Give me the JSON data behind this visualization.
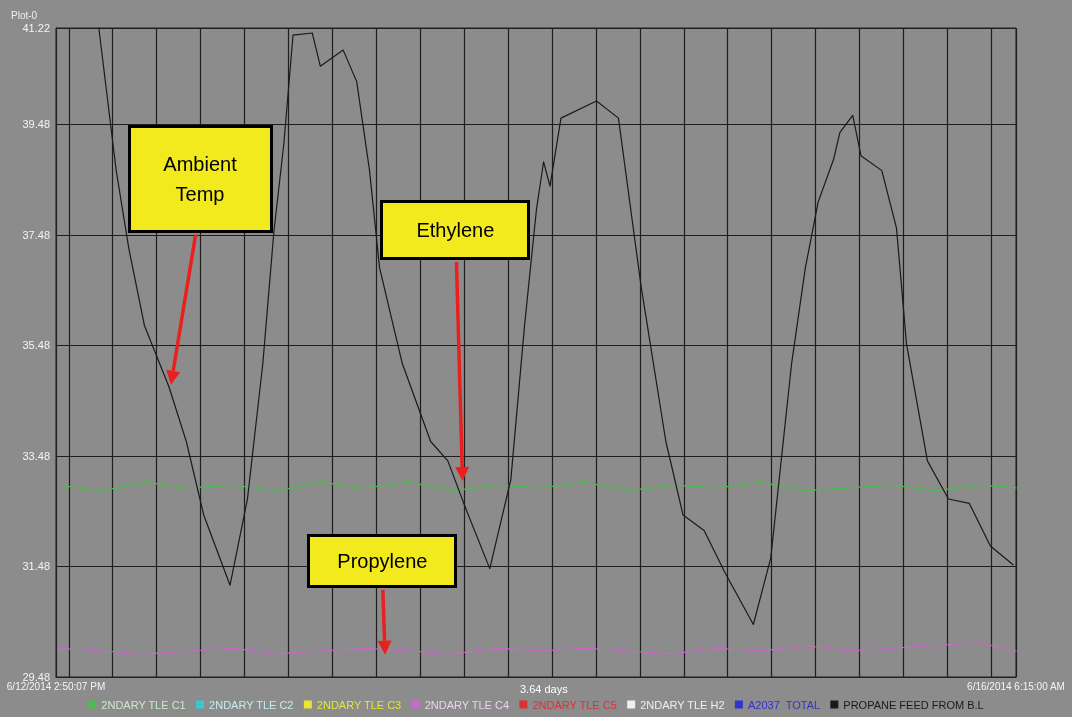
{
  "chart_data": {
    "type": "line",
    "title": "Plot-0",
    "xlim": [
      "2014-06-12T14:50",
      "2014-06-16T06:15"
    ],
    "xticks": [
      {
        "value": "2014-06-12T14:50",
        "label": "6/12/2014 2:50:07 PM"
      },
      {
        "value": "2014-06-12T16:00",
        "label": null
      },
      {
        "value": "2014-06-12T20:00",
        "label": null
      },
      {
        "value": "2014-06-13T00:00",
        "label": null
      },
      {
        "value": "2014-06-13T04:00",
        "label": null
      },
      {
        "value": "2014-06-13T08:00",
        "label": null
      },
      {
        "value": "2014-06-13T12:00",
        "label": null
      },
      {
        "value": "2014-06-13T16:00",
        "label": null
      },
      {
        "value": "2014-06-13T20:00",
        "label": null
      },
      {
        "value": "2014-06-14T00:00",
        "label": null
      },
      {
        "value": "2014-06-14T04:00",
        "label": null
      },
      {
        "value": "2014-06-14T08:00",
        "label": null
      },
      {
        "value": "2014-06-14T12:00",
        "label": null
      },
      {
        "value": "2014-06-14T16:00",
        "label": null
      },
      {
        "value": "2014-06-14T20:00",
        "label": null
      },
      {
        "value": "2014-06-15T00:00",
        "label": null
      },
      {
        "value": "2014-06-15T04:00",
        "label": null
      },
      {
        "value": "2014-06-15T08:00",
        "label": null
      },
      {
        "value": "2014-06-15T12:00",
        "label": null
      },
      {
        "value": "2014-06-15T16:00",
        "label": null
      },
      {
        "value": "2014-06-15T20:00",
        "label": null
      },
      {
        "value": "2014-06-16T00:00",
        "label": null
      },
      {
        "value": "2014-06-16T04:00",
        "label": null
      },
      {
        "value": "2014-06-16T06:15",
        "label": "6/16/2014 6:15:00 AM"
      }
    ],
    "ylim": [
      29.48,
      41.22
    ],
    "yticks": [
      29.48,
      31.48,
      33.48,
      35.48,
      37.48,
      39.48,
      41.22
    ],
    "grid": true,
    "legend": "bottom",
    "line_style": "solid",
    "marker": "none",
    "series": [
      {
        "name": "2NDARY TLE C1",
        "color": "#4dbb4d",
        "x": [
          "2014-06-12T15:00",
          "2014-06-12T19:00",
          "2014-06-12T23:00",
          "2014-06-13T03:00",
          "2014-06-13T07:00",
          "2014-06-13T11:00",
          "2014-06-13T15:00",
          "2014-06-13T19:00",
          "2014-06-13T23:00",
          "2014-06-14T03:00",
          "2014-06-14T07:00",
          "2014-06-14T11:00",
          "2014-06-14T15:00",
          "2014-06-14T19:00",
          "2014-06-14T23:00",
          "2014-06-15T03:00",
          "2014-06-15T07:00",
          "2014-06-15T11:00",
          "2014-06-15T15:00",
          "2014-06-15T19:00",
          "2014-06-15T23:00",
          "2014-06-16T03:00",
          "2014-06-16T06:15"
        ],
        "values": [
          32.95,
          32.85,
          33.0,
          32.9,
          32.95,
          32.85,
          33.0,
          32.9,
          33.0,
          32.85,
          32.95,
          32.9,
          33.0,
          32.85,
          32.95,
          32.9,
          33.0,
          32.85,
          32.9,
          32.95,
          32.85,
          32.95,
          32.9
        ]
      },
      {
        "name": "2NDARY TLE C2",
        "color": "#33cccc"
      },
      {
        "name": "2NDARY TLE C3",
        "color": "#e6e633"
      },
      {
        "name": "2NDARY TLE C4",
        "color": "#cc66cc",
        "x": [
          "2014-06-12T15:00",
          "2014-06-12T19:00",
          "2014-06-12T23:00",
          "2014-06-13T03:00",
          "2014-06-13T07:00",
          "2014-06-13T11:00",
          "2014-06-13T15:00",
          "2014-06-13T19:00",
          "2014-06-13T23:00",
          "2014-06-14T03:00",
          "2014-06-14T07:00",
          "2014-06-14T11:00",
          "2014-06-14T15:00",
          "2014-06-14T19:00",
          "2014-06-14T23:00",
          "2014-06-15T03:00",
          "2014-06-15T07:00",
          "2014-06-15T11:00",
          "2014-06-15T15:00",
          "2014-06-15T19:00",
          "2014-06-15T23:00",
          "2014-06-16T03:00",
          "2014-06-16T06:15"
        ],
        "values": [
          30.0,
          29.95,
          29.9,
          29.95,
          30.0,
          29.9,
          29.95,
          30.0,
          29.95,
          29.9,
          30.0,
          29.95,
          30.0,
          29.95,
          29.9,
          30.0,
          29.95,
          30.05,
          29.95,
          30.0,
          30.05,
          30.1,
          29.95
        ]
      },
      {
        "name": "2NDARY TLE C5",
        "color": "#e03030"
      },
      {
        "name": "2NDARY TLE H2",
        "color": "#f0f0f0"
      },
      {
        "name": "A2037  TOTAL",
        "color": "#3333cc"
      },
      {
        "name": "PROPANE FEED FROM B.L",
        "color": "#1a1a1a",
        "x": [
          "2014-06-12T18:44",
          "2014-06-12T20:19",
          "2014-06-12T21:28",
          "2014-06-12T22:53",
          "2014-06-13T01:07",
          "2014-06-13T02:42",
          "2014-06-13T04:17",
          "2014-06-13T06:41",
          "2014-06-13T08:16",
          "2014-06-13T09:40",
          "2014-06-13T10:40",
          "2014-06-13T11:35",
          "2014-06-13T12:25",
          "2014-06-13T14:10",
          "2014-06-13T14:54",
          "2014-06-13T16:59",
          "2014-06-13T18:13",
          "2014-06-13T19:23",
          "2014-06-13T20:18",
          "2014-06-13T22:22",
          "2014-06-14T00:57",
          "2014-06-14T02:31",
          "2014-06-14T04:06",
          "2014-06-14T06:20",
          "2014-06-14T08:15",
          "2014-06-14T09:30",
          "2014-06-14T10:35",
          "2014-06-14T11:14",
          "2014-06-14T11:49",
          "2014-06-14T12:49",
          "2014-06-14T16:03",
          "2014-06-14T18:03",
          "2014-06-14T20:07",
          "2014-06-14T22:22",
          "2014-06-14T23:56",
          "2014-06-15T01:51",
          "2014-06-15T03:46",
          "2014-06-15T06:20",
          "2014-06-15T07:55",
          "2014-06-15T09:49",
          "2014-06-15T11:04",
          "2014-06-15T12:14",
          "2014-06-15T13:38",
          "2014-06-15T14:13",
          "2014-06-15T15:23",
          "2014-06-15T16:08",
          "2014-06-15T18:02",
          "2014-06-15T19:22",
          "2014-06-15T20:17",
          "2014-06-15T22:11",
          "2014-06-16T00:06",
          "2014-06-16T02:00",
          "2014-06-16T03:55",
          "2014-06-16T05:59"
        ],
        "values": [
          41.22,
          38.64,
          37.23,
          35.84,
          34.73,
          33.74,
          32.41,
          31.14,
          32.7,
          35.15,
          37.52,
          39.13,
          41.09,
          41.13,
          40.53,
          40.82,
          40.25,
          38.64,
          36.88,
          35.15,
          33.74,
          33.39,
          32.55,
          31.44,
          33.05,
          35.84,
          37.94,
          38.8,
          38.36,
          39.59,
          39.9,
          39.59,
          36.54,
          33.74,
          32.41,
          32.13,
          31.36,
          30.43,
          31.63,
          35.15,
          36.88,
          38.07,
          38.84,
          39.33,
          39.64,
          38.91,
          38.64,
          37.6,
          35.5,
          33.39,
          32.7,
          32.62,
          31.85,
          31.51
        ]
      }
    ],
    "annotations": [
      "Ambient Temp",
      "Ethylene",
      "Propylene",
      "3.64 days"
    ]
  }
}
